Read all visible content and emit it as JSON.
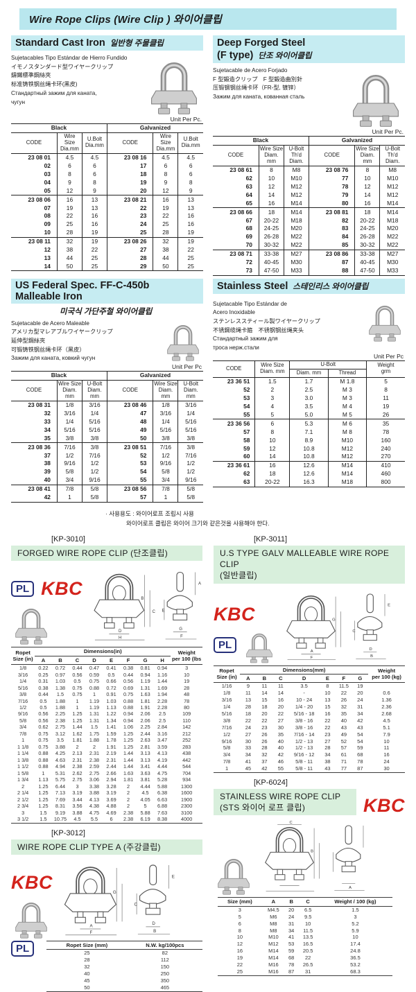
{
  "banner": "Wire Rope Clips  (Wire Clip ) 와이어클립",
  "logos": {
    "pl": "PL",
    "kbc": "KBC"
  },
  "cast_iron": {
    "title": "Standard Cast Iron",
    "title_kr": "일반형 주물클립",
    "desc": [
      "Sujetacables Tipo Estándar de Hierro Fundido",
      "イモノスタンダード型ワイヤークリップ",
      "鑄鐵標準鋼絲夾",
      "标准铸铁钢丝绳卡环(黑皮)",
      "Стандартный зажим для каната,",
      "чугун"
    ],
    "unit": "Unit Per Pc.",
    "table": {
      "group_headers": [
        "Black",
        "Galvanized"
      ],
      "columns": [
        "CODE",
        "Wire\nSize\nDia.mm",
        "U.Bolt\nDia.mm",
        "CODE",
        "Wire\nSize\nDia.mm",
        "U.Bolt\nDia.mm"
      ],
      "group_starts": [
        5,
        10
      ],
      "rows": [
        [
          "23 08 01",
          "4.5",
          "4.5",
          "23 08 16",
          "4.5",
          "4.5"
        ],
        [
          "02",
          "6",
          "6",
          "17",
          "6",
          "6"
        ],
        [
          "03",
          "8",
          "6",
          "18",
          "8",
          "6"
        ],
        [
          "04",
          "9",
          "8",
          "19",
          "9",
          "8"
        ],
        [
          "05",
          "12",
          "9",
          "20",
          "12",
          "9"
        ],
        [
          "23 08 06",
          "16",
          "13",
          "23 08 21",
          "16",
          "13"
        ],
        [
          "07",
          "19",
          "13",
          "22",
          "19",
          "13"
        ],
        [
          "08",
          "22",
          "16",
          "23",
          "22",
          "16"
        ],
        [
          "09",
          "25",
          "16",
          "24",
          "25",
          "16"
        ],
        [
          "10",
          "28",
          "19",
          "25",
          "28",
          "19"
        ],
        [
          "23 08 11",
          "32",
          "19",
          "23 08 26",
          "32",
          "19"
        ],
        [
          "12",
          "38",
          "22",
          "27",
          "38",
          "22"
        ],
        [
          "13",
          "44",
          "25",
          "28",
          "44",
          "25"
        ],
        [
          "14",
          "50",
          "25",
          "29",
          "50",
          "25"
        ]
      ]
    }
  },
  "deep_forged": {
    "title1": "Deep Forged Steel",
    "title2": "(F type)",
    "title_kr": "단조 와이어클립",
    "desc": [
      "Sujetacable de Acero Forjado",
      "F 型鍛造クリップ　F 型鍛造曲別針",
      "压锻钢钢丝绳卡环（FR-型, 镀锌）",
      "Зажим для каната, кованная сталь"
    ],
    "unit": "Unit Per Pc.",
    "table": {
      "group_headers": [
        "Black",
        "Galvanized"
      ],
      "columns": [
        "CODE",
        "Wire Size\nDiam. mm",
        "U-Bolt\nTh'd\nDiam.",
        "CODE",
        "Wire Size\nDiam. mm",
        "U-Bolt\nTh'd\nDiam."
      ],
      "group_starts": [
        5,
        10
      ],
      "rows": [
        [
          "23 08 61",
          "8",
          "M8",
          "23 08 76",
          "8",
          "M8"
        ],
        [
          "62",
          "10",
          "M10",
          "77",
          "10",
          "M10"
        ],
        [
          "63",
          "12",
          "M12",
          "78",
          "12",
          "M12"
        ],
        [
          "64",
          "14",
          "M12",
          "79",
          "14",
          "M12"
        ],
        [
          "65",
          "16",
          "M14",
          "80",
          "16",
          "M14"
        ],
        [
          "23 08 66",
          "18",
          "M14",
          "23 08 81",
          "18",
          "M14"
        ],
        [
          "67",
          "20-22",
          "M18",
          "82",
          "20-22",
          "M18"
        ],
        [
          "68",
          "24-25",
          "M20",
          "83",
          "24-25",
          "M20"
        ],
        [
          "69",
          "26-28",
          "M22",
          "84",
          "26-28",
          "M22"
        ],
        [
          "70",
          "30-32",
          "M22",
          "85",
          "30-32",
          "M22"
        ],
        [
          "23 08 71",
          "33-38",
          "M27",
          "23 08 86",
          "33-38",
          "M27"
        ],
        [
          "72",
          "40-45",
          "M30",
          "87",
          "40-45",
          "M30"
        ],
        [
          "73",
          "47-50",
          "M33",
          "88",
          "47-50",
          "M33"
        ]
      ]
    }
  },
  "us_federal": {
    "title1": "US Federal Spec. FF-C-450b",
    "title2": "Malleable Iron",
    "subtitle_kr": "미국식 가단주철 와이어클립",
    "desc": [
      "Sujetacable de Acero Maleable",
      "アメリカ型マレアブルワイヤークリップ",
      "延伸型鋼絲夾",
      "可锻铸铁钢丝绳卡环（黑皮）",
      "Зажим для каната, ковкий чугун"
    ],
    "unit": "Unit Per Pc",
    "table": {
      "group_headers": [
        "Black",
        "Galvanized"
      ],
      "columns": [
        "CODE",
        "Wire Size\nDiam. mm",
        "U-Bolt\nDiam.\nmm",
        "CODE",
        "Wire Size\nDiam. mm",
        "U-Bolt\nDiam.\nmm"
      ],
      "group_starts": [
        5,
        10
      ],
      "rows": [
        [
          "23 08 31",
          "1/8",
          "3/16",
          "23 08 46",
          "1/8",
          "3/16"
        ],
        [
          "32",
          "3/16",
          "1/4",
          "47",
          "3/16",
          "1/4"
        ],
        [
          "33",
          "1/4",
          "5/16",
          "48",
          "1/4",
          "5/16"
        ],
        [
          "34",
          "5/16",
          "5/16",
          "49",
          "5/16",
          "5/16"
        ],
        [
          "35",
          "3/8",
          "3/8",
          "50",
          "3/8",
          "3/8"
        ],
        [
          "23 08 36",
          "7/16",
          "3/8",
          "23 08 51",
          "7/16",
          "3/8"
        ],
        [
          "37",
          "1/2",
          "7/16",
          "52",
          "1/2",
          "7/16"
        ],
        [
          "38",
          "9/16",
          "1/2",
          "53",
          "9/16",
          "1/2"
        ],
        [
          "39",
          "5/8",
          "1/2",
          "54",
          "5/8",
          "1/2"
        ],
        [
          "40",
          "3/4",
          "9/16",
          "55",
          "3/4",
          "9/16"
        ],
        [
          "23 08 41",
          "7/8",
          "5/8",
          "23 08 56",
          "7/8",
          "5/8"
        ],
        [
          "42",
          "1",
          "5/8",
          "57",
          "1",
          "5/8"
        ]
      ]
    }
  },
  "stainless": {
    "title": "Stainless Steel",
    "title_kr": "스테인리스 와이어클립",
    "desc": [
      "Sujetacable Tipo Estándar de",
      "Acero Inoxidable",
      "ステンレススティール製ワイヤークリップ",
      "不锈鋼缆绳卡箍　不锈钢钢丝绳夹头",
      "Стандартный зажим для",
      "троса нерж.стали"
    ],
    "unit": "Unit Per Pc",
    "table": {
      "code_h": "CODE",
      "wire_h": "Wire Size\nDiam. mm",
      "ubolt_h": "U-Bolt",
      "sub": [
        "Diam. mm",
        "Thread"
      ],
      "weight_h": "Weight\ngrm",
      "group_starts": [
        5,
        10
      ],
      "rows": [
        [
          "23 36 51",
          "1.5",
          "1.7",
          "M 1.8",
          "5"
        ],
        [
          "52",
          "2",
          "2.5",
          "M 3",
          "8"
        ],
        [
          "53",
          "3",
          "3.0",
          "M 3",
          "11"
        ],
        [
          "54",
          "4",
          "3.5",
          "M 4",
          "19"
        ],
        [
          "55",
          "5",
          "5.0",
          "M 5",
          "26"
        ],
        [
          "23 36 56",
          "6",
          "5.3",
          "M 6",
          "35"
        ],
        [
          "57",
          "8",
          "7.1",
          "M 8",
          "78"
        ],
        [
          "58",
          "10",
          "8.9",
          "M10",
          "160"
        ],
        [
          "59",
          "12",
          "10.8",
          "M12",
          "240"
        ],
        [
          "60",
          "14",
          "10.8",
          "M12",
          "270"
        ],
        [
          "23 36 61",
          "16",
          "12.6",
          "M14",
          "410"
        ],
        [
          "62",
          "18",
          "12.6",
          "M14",
          "460"
        ],
        [
          "63",
          "20-22",
          "16.3",
          "M18",
          "800"
        ]
      ]
    }
  },
  "note": {
    "line1": "· 사용용도 : 와이어로프 조립시 사용",
    "line2": "와이어로프 클립은 와이어 크기와 같은것을 사용해야 한다."
  },
  "kp3010": {
    "label": "[KP-3010]",
    "title": "FORGED WIRE ROPE CLIP (단조클립)",
    "table": {
      "size_h": "Ropet\nSize (in)",
      "dim_h": "Dimensions(in)",
      "letters": [
        "A",
        "B",
        "C",
        "D",
        "E",
        "F",
        "G",
        "H"
      ],
      "weight_h": "Weight\nper 100 (lbs",
      "rows": [
        [
          "1/8",
          "0.22",
          "0.72",
          "0.44",
          "0.47",
          "0.41",
          "0.38",
          "0.81",
          "0.94",
          "3"
        ],
        [
          "3/16",
          "0.25",
          "0.97",
          "0.56",
          "0.59",
          "0.5",
          "0.44",
          "0.94",
          "1.16",
          "10"
        ],
        [
          "1/4",
          "0.31",
          "1.03",
          "0.5",
          "0.75",
          "0.66",
          "0.56",
          "1.19",
          "1.44",
          "19"
        ],
        [
          "5/16",
          "0.38",
          "1.38",
          "0.75",
          "0.88",
          "0.72",
          "0.69",
          "1.31",
          "1.69",
          "28"
        ],
        [
          "3/8",
          "0.44",
          "1.5",
          "0.75",
          "1",
          "0.91",
          "0.75",
          "1.63",
          "1.94",
          "48"
        ],
        [
          "7/16",
          "0.5",
          "1.88",
          "1",
          "1.19",
          "1.03",
          "0.88",
          "1.81",
          "2.28",
          "78"
        ],
        [
          "1/2",
          "0.5",
          "1.88",
          "1",
          "1.19",
          "1.13",
          "0.88",
          "1.91",
          "2.28",
          "80"
        ],
        [
          "9/16",
          "0.56",
          "2.25",
          "1.25",
          "1.31",
          "1.22",
          "0.94",
          "2.06",
          "2.5",
          "109"
        ],
        [
          "5/8",
          "0.56",
          "2.38",
          "1.25",
          "1.31",
          "1.34",
          "0.94",
          "2.06",
          "2.5",
          "110"
        ],
        [
          "3/4",
          "0.62",
          "2.75",
          "1.44",
          "1.5",
          "1.41",
          "1.06",
          "2.25",
          "2.84",
          "142"
        ],
        [
          "7/8",
          "0.75",
          "3.12",
          "1.62",
          "1.75",
          "1.59",
          "1.25",
          "2.44",
          "3.16",
          "212"
        ],
        [
          "1",
          "0.75",
          "3.5",
          "1.81",
          "1.88",
          "1.78",
          "1.25",
          "2.63",
          "3.47",
          "252"
        ],
        [
          "1 1/8",
          "0.75",
          "3.88",
          "2",
          "2",
          "1.91",
          "1.25",
          "2.81",
          "3.59",
          "283"
        ],
        [
          "1 1/4",
          "0.88",
          "4.25",
          "2.13",
          "2.31",
          "2.19",
          "1.44",
          "3.13",
          "4.13",
          "438"
        ],
        [
          "1 3/8",
          "0.88",
          "4.63",
          "2.31",
          "2.38",
          "2.31",
          "1.44",
          "3.13",
          "4.19",
          "442"
        ],
        [
          "1 1/2",
          "0.88",
          "4.94",
          "2.38",
          "2.59",
          "2.44",
          "1.44",
          "3.41",
          "4.44",
          "544"
        ],
        [
          "1 5/8",
          "1",
          "5.31",
          "2.62",
          "2.75",
          "2.66",
          "1.63",
          "3.63",
          "4.75",
          "704"
        ],
        [
          "1 3/4",
          "1.13",
          "5.75",
          "2.75",
          "3.06",
          "2.94",
          "1.81",
          "3.81",
          "5.28",
          "934"
        ],
        [
          "2",
          "1.25",
          "6.44",
          "3",
          "3.38",
          "3.28",
          "2",
          "4.44",
          "5.88",
          "1300"
        ],
        [
          "2 1/4",
          "1.25",
          "7.13",
          "3.19",
          "3.88",
          "3.19",
          "2",
          "4.5",
          "6.38",
          "1600"
        ],
        [
          "2 1/2",
          "1.25",
          "7.69",
          "3.44",
          "4.13",
          "3.69",
          "2",
          "4.05",
          "6.63",
          "1900"
        ],
        [
          "2 3/4",
          "1.25",
          "8.31",
          "3.56",
          "4.38",
          "4.88",
          "2",
          "5",
          "6.88",
          "2300"
        ],
        [
          "3",
          "1.5",
          "9.19",
          "3.88",
          "4.75",
          "4.69",
          "2.38",
          "5.88",
          "7.63",
          "3100"
        ],
        [
          "3 1/2",
          "1.5",
          "10.75",
          "4.5",
          "5.5",
          "6",
          "2.38",
          "6.19",
          "8.38",
          "4000"
        ]
      ]
    }
  },
  "kp3011": {
    "label": "[KP-3011]",
    "title": "U.S TYPE GALV MALLEABLE WIRE ROPE CLIP",
    "title2": "(일반클립)",
    "table": {
      "size_h": "Ropet\nSize (in)",
      "dim_h": "Dimensions(mm)",
      "letters": [
        "A",
        "B",
        "C",
        "D",
        "E",
        "F",
        "G"
      ],
      "weight_h": "Weight\nper 100 (kg)",
      "rows": [
        [
          "1/16",
          "9",
          "11",
          "11",
          "3.5",
          "8",
          "11.5",
          "19",
          ""
        ],
        [
          "1/8",
          "11",
          "14",
          "14",
          "-",
          "10",
          "22",
          "20",
          "0.6"
        ],
        [
          "3/16",
          "13",
          "15",
          "16",
          "10 - 24",
          "13",
          "26",
          "24",
          "1.36"
        ],
        [
          "1/4",
          "28",
          "18",
          "20",
          "1/4 - 20",
          "15",
          "32",
          "31",
          "2.36"
        ],
        [
          "5/16",
          "18",
          "20",
          "22",
          "5/16 - 18",
          "16",
          "35",
          "34",
          "2.68"
        ],
        [
          "3/8",
          "22",
          "22",
          "27",
          "3/8 - 16",
          "22",
          "40",
          "42",
          "4.5"
        ],
        [
          "7/16",
          "24",
          "23",
          "30",
          "3/8 - 16",
          "22",
          "43",
          "43",
          "5.1"
        ],
        [
          "1/2",
          "27",
          "26",
          "35",
          "7/16 - 14",
          "23",
          "49",
          "54",
          "7.9"
        ],
        [
          "9/16",
          "30",
          "26",
          "40",
          "1/2 - 13",
          "27",
          "52",
          "54",
          "10"
        ],
        [
          "5/8",
          "33",
          "28",
          "40",
          "1/2 - 13",
          "28",
          "57",
          "59",
          "11"
        ],
        [
          "3/4",
          "34",
          "32",
          "42",
          "9/16 - 12",
          "34",
          "61",
          "68",
          "16"
        ],
        [
          "7/8",
          "41",
          "37",
          "46",
          "5/8 - 11",
          "38",
          "71",
          "78",
          "24"
        ],
        [
          "1",
          "45",
          "42",
          "55",
          "5/8 - 11",
          "43",
          "77",
          "87",
          "30"
        ]
      ]
    }
  },
  "kp3012": {
    "label": "[KP-3012]",
    "title": "WIRE ROPE CLIP TYPE A (주강클립)",
    "diagram_letters": [
      "G",
      "A",
      "F",
      "E",
      "C",
      "D",
      "B"
    ],
    "table": {
      "headers": [
        "Ropet Size (mm)",
        "N.W. kg/100pcs"
      ],
      "rows": [
        [
          "25",
          "82"
        ],
        [
          "28",
          "112"
        ],
        [
          "32",
          "150"
        ],
        [
          "40",
          "250"
        ],
        [
          "45",
          "350"
        ],
        [
          "50",
          "465"
        ]
      ]
    }
  },
  "kp6024": {
    "label": "[KP-6024]",
    "title": "STAINLESS WIRE ROPE CLIP",
    "title2": "(STS 와이어 로프 클립)",
    "table": {
      "headers": [
        "Size (mm)",
        "A",
        "B",
        "C",
        "Weight / 100 (kg)"
      ],
      "rows": [
        [
          "3",
          "M4.5",
          "20",
          "6.5",
          "1.5"
        ],
        [
          "5",
          "M6",
          "24",
          "9.5",
          "3"
        ],
        [
          "6",
          "M8",
          "31",
          "10",
          "5.2"
        ],
        [
          "8",
          "M8",
          "34",
          "11.5",
          "5.9"
        ],
        [
          "10",
          "M10",
          "41",
          "13.5",
          "10"
        ],
        [
          "12",
          "M12",
          "53",
          "16.5",
          "17.4"
        ],
        [
          "16",
          "M14",
          "59",
          "20.5",
          "24.8"
        ],
        [
          "19",
          "M14",
          "68",
          "22",
          "36.5"
        ],
        [
          "22",
          "M16",
          "78",
          "26.5",
          "53.2"
        ],
        [
          "25",
          "M16",
          "87",
          "31",
          "68.3"
        ]
      ]
    }
  },
  "colors": {
    "highlight_cyan": "#b9e7ee",
    "highlight_green": "#d8efdc",
    "brand_red": "#d3231c",
    "logo_navy": "#26307a"
  }
}
